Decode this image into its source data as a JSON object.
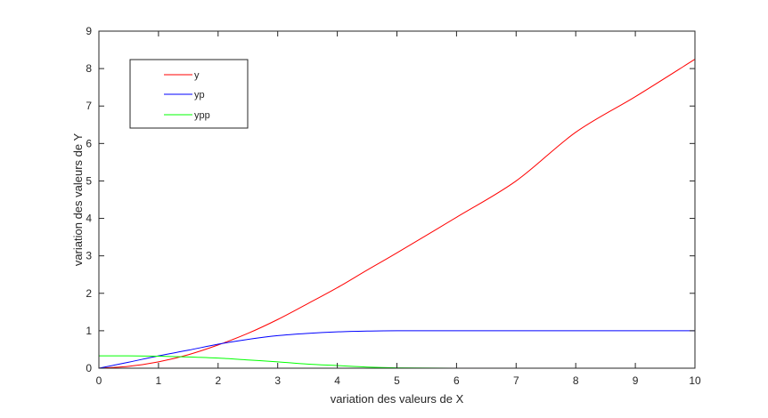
{
  "chart_data": {
    "type": "line",
    "xlabel": "variation des valeurs de X",
    "ylabel": "variation des valeurs de Y",
    "xlim": [
      0,
      10
    ],
    "ylim": [
      0,
      9
    ],
    "xticks": [
      "0",
      "1",
      "2",
      "3",
      "4",
      "5",
      "6",
      "7",
      "8",
      "9",
      "10"
    ],
    "yticks": [
      "0",
      "1",
      "2",
      "3",
      "4",
      "5",
      "6",
      "7",
      "8",
      "9"
    ],
    "grid": false,
    "legend_position": "top-left",
    "series": [
      {
        "name": "y",
        "color": "#ff0000",
        "x": [
          0,
          0.5,
          1,
          1.5,
          2,
          2.5,
          3,
          3.5,
          4,
          4.5,
          5,
          6,
          7,
          8,
          9,
          10
        ],
        "values": [
          0,
          0.05,
          0.17,
          0.36,
          0.62,
          0.93,
          1.3,
          1.72,
          2.15,
          2.62,
          3.08,
          4.03,
          5.0,
          6.3,
          7.25,
          8.25
        ]
      },
      {
        "name": "yp",
        "color": "#0000ff",
        "x": [
          0,
          0.5,
          1,
          1.5,
          2,
          2.5,
          3,
          3.5,
          4,
          4.5,
          5,
          6,
          7,
          8,
          9,
          10
        ],
        "values": [
          0,
          0.16,
          0.33,
          0.48,
          0.64,
          0.77,
          0.87,
          0.93,
          0.97,
          0.99,
          1.0,
          1.0,
          1.0,
          1.0,
          1.0,
          1.0
        ]
      },
      {
        "name": "ypp",
        "color": "#00ff00",
        "x": [
          0,
          0.5,
          1,
          1.5,
          2,
          2.5,
          3,
          3.5,
          4,
          4.5,
          5,
          6,
          7,
          8,
          9,
          10
        ],
        "values": [
          0.33,
          0.33,
          0.32,
          0.3,
          0.27,
          0.22,
          0.17,
          0.11,
          0.07,
          0.03,
          0.01,
          0,
          0,
          0,
          0,
          0
        ]
      }
    ]
  }
}
